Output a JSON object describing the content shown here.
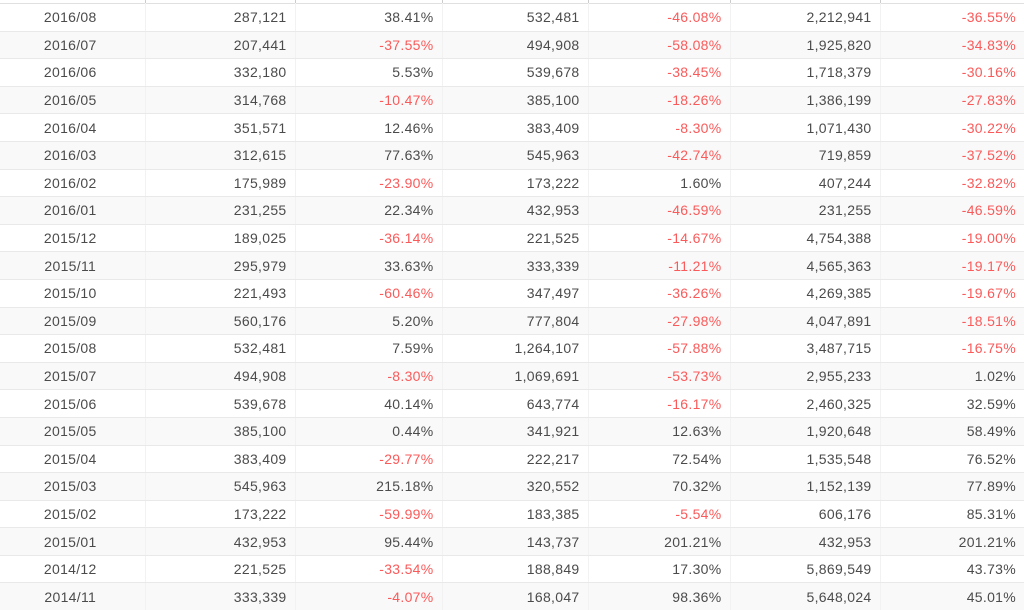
{
  "colors": {
    "text": "#4b4b4b",
    "negative": "#fa5a5a",
    "row_stripe": "#f9f9f9",
    "row_border": "#e9e9e9",
    "column_border": "#f2f2f2"
  },
  "table": {
    "columns": [
      {
        "name": "date",
        "align": "center"
      },
      {
        "name": "value-1",
        "align": "right"
      },
      {
        "name": "pct-1",
        "align": "right"
      },
      {
        "name": "value-2",
        "align": "right"
      },
      {
        "name": "pct-2",
        "align": "right"
      },
      {
        "name": "value-3",
        "align": "right"
      },
      {
        "name": "pct-3",
        "align": "right"
      }
    ],
    "rows": [
      [
        "2016/08",
        "287,121",
        "38.41%",
        "532,481",
        "-46.08%",
        "2,212,941",
        "-36.55%"
      ],
      [
        "2016/07",
        "207,441",
        "-37.55%",
        "494,908",
        "-58.08%",
        "1,925,820",
        "-34.83%"
      ],
      [
        "2016/06",
        "332,180",
        "5.53%",
        "539,678",
        "-38.45%",
        "1,718,379",
        "-30.16%"
      ],
      [
        "2016/05",
        "314,768",
        "-10.47%",
        "385,100",
        "-18.26%",
        "1,386,199",
        "-27.83%"
      ],
      [
        "2016/04",
        "351,571",
        "12.46%",
        "383,409",
        "-8.30%",
        "1,071,430",
        "-30.22%"
      ],
      [
        "2016/03",
        "312,615",
        "77.63%",
        "545,963",
        "-42.74%",
        "719,859",
        "-37.52%"
      ],
      [
        "2016/02",
        "175,989",
        "-23.90%",
        "173,222",
        "1.60%",
        "407,244",
        "-32.82%"
      ],
      [
        "2016/01",
        "231,255",
        "22.34%",
        "432,953",
        "-46.59%",
        "231,255",
        "-46.59%"
      ],
      [
        "2015/12",
        "189,025",
        "-36.14%",
        "221,525",
        "-14.67%",
        "4,754,388",
        "-19.00%"
      ],
      [
        "2015/11",
        "295,979",
        "33.63%",
        "333,339",
        "-11.21%",
        "4,565,363",
        "-19.17%"
      ],
      [
        "2015/10",
        "221,493",
        "-60.46%",
        "347,497",
        "-36.26%",
        "4,269,385",
        "-19.67%"
      ],
      [
        "2015/09",
        "560,176",
        "5.20%",
        "777,804",
        "-27.98%",
        "4,047,891",
        "-18.51%"
      ],
      [
        "2015/08",
        "532,481",
        "7.59%",
        "1,264,107",
        "-57.88%",
        "3,487,715",
        "-16.75%"
      ],
      [
        "2015/07",
        "494,908",
        "-8.30%",
        "1,069,691",
        "-53.73%",
        "2,955,233",
        "1.02%"
      ],
      [
        "2015/06",
        "539,678",
        "40.14%",
        "643,774",
        "-16.17%",
        "2,460,325",
        "32.59%"
      ],
      [
        "2015/05",
        "385,100",
        "0.44%",
        "341,921",
        "12.63%",
        "1,920,648",
        "58.49%"
      ],
      [
        "2015/04",
        "383,409",
        "-29.77%",
        "222,217",
        "72.54%",
        "1,535,548",
        "76.52%"
      ],
      [
        "2015/03",
        "545,963",
        "215.18%",
        "320,552",
        "70.32%",
        "1,152,139",
        "77.89%"
      ],
      [
        "2015/02",
        "173,222",
        "-59.99%",
        "183,385",
        "-5.54%",
        "606,176",
        "85.31%"
      ],
      [
        "2015/01",
        "432,953",
        "95.44%",
        "143,737",
        "201.21%",
        "432,953",
        "201.21%"
      ],
      [
        "2014/12",
        "221,525",
        "-33.54%",
        "188,849",
        "17.30%",
        "5,869,549",
        "43.73%"
      ],
      [
        "2014/11",
        "333,339",
        "-4.07%",
        "168,047",
        "98.36%",
        "5,648,024",
        "45.01%"
      ]
    ]
  }
}
